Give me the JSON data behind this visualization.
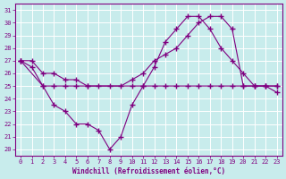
{
  "xlabel": "Windchill (Refroidissement éolien,°C)",
  "bg_color": "#c8ecec",
  "line_color": "#800080",
  "grid_color": "#ffffff",
  "ylim": [
    19.5,
    31.5
  ],
  "xlim": [
    -0.5,
    23.5
  ],
  "yticks": [
    20,
    21,
    22,
    23,
    24,
    25,
    26,
    27,
    28,
    29,
    30,
    31
  ],
  "xticks": [
    0,
    1,
    2,
    3,
    4,
    5,
    6,
    7,
    8,
    9,
    10,
    11,
    12,
    13,
    14,
    15,
    16,
    17,
    18,
    19,
    20,
    21,
    22,
    23
  ],
  "series_flat": {
    "x": [
      0,
      2,
      3,
      4,
      5,
      6,
      10,
      11,
      12,
      13,
      14,
      15,
      16,
      17,
      18,
      19,
      20,
      21,
      22,
      23
    ],
    "y": [
      27,
      25,
      25,
      25,
      25,
      25,
      25,
      25,
      25,
      25,
      25,
      25,
      25,
      25,
      25,
      25,
      25,
      25,
      25,
      25
    ]
  },
  "series_curve": {
    "x": [
      0,
      1,
      2,
      3,
      4,
      5,
      6,
      7,
      8,
      9,
      10,
      11,
      12,
      13,
      14,
      15,
      16,
      17,
      18,
      19,
      20,
      21,
      22,
      23
    ],
    "y": [
      27,
      26.5,
      25,
      23.5,
      23,
      22,
      22,
      21.5,
      20,
      21,
      23.5,
      25,
      26.5,
      28.5,
      29.5,
      30.5,
      30.5,
      29.5,
      28,
      27,
      26,
      25,
      25,
      24.5
    ]
  },
  "series_diag": {
    "x": [
      0,
      1,
      2,
      3,
      4,
      5,
      6,
      7,
      8,
      9,
      10,
      11,
      12,
      13,
      14,
      15,
      16,
      17,
      18,
      19,
      20,
      21,
      22,
      23
    ],
    "y": [
      27,
      27,
      26,
      26,
      25.5,
      25.5,
      25,
      25,
      25,
      25,
      25.5,
      26,
      27,
      27.5,
      28,
      29,
      30,
      30.5,
      30.5,
      29.5,
      25,
      25,
      25,
      25
    ]
  }
}
